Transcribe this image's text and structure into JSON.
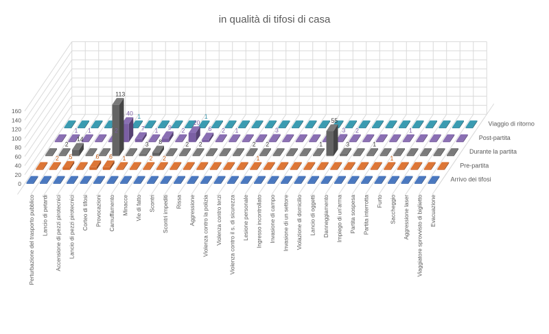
{
  "chart_data": {
    "type": "bar",
    "projection": "3d-column",
    "title": "in qualità di tifosi di casa",
    "title_color": "#595959",
    "axis_text_color": "#595959",
    "grid_color": "#D9D9D9",
    "grid": true,
    "ylim": [
      0,
      160
    ],
    "yticks": [
      0,
      20,
      40,
      60,
      80,
      100,
      120,
      140,
      160
    ],
    "series_labels_position": "right-depth-axis",
    "categories": [
      "Perturbazione del trasporto pubblico",
      "Lancio di petardi",
      "Accensione di pezzi pirotecnici",
      "Lancio di pezzi pirotecnici",
      "Corteo di tifosi",
      "Provocazioni",
      "Camuffamento",
      "Minacce",
      "Vie di fatto",
      "Scontri",
      "Scontri impediti",
      "Rissa",
      "Aggressione",
      "Violenza contro la polizia",
      "Violenza contro terzi",
      "Violenza contro il s. di sicurezza",
      "Lesione personale",
      "Ingresso incontrollato",
      "Invasione di campo",
      "Invasione di un settore",
      "Violazione di domicilio",
      "Lancio di oggetti",
      "Danneggiamento",
      "Impiego di un'arma",
      "Partita sospesa",
      "Partita interrotta",
      "Furto",
      "Saccheggio",
      "Aggressione laser",
      "Viaggiatore sprovvisto di biglietto",
      "Evacuazione"
    ],
    "series": [
      {
        "name": "Arrivo dei tifosi",
        "color": "#3E6CB5",
        "color_top": "#4A78C0",
        "color_side": "#2B4C80",
        "label_color": "#3E6CB5",
        "values": [
          0,
          0,
          0,
          0,
          0,
          0,
          0,
          0,
          0,
          0,
          0,
          0,
          0,
          0,
          0,
          0,
          0,
          0,
          0,
          0,
          0,
          0,
          0,
          0,
          0,
          0,
          0,
          0,
          0,
          0,
          0
        ]
      },
      {
        "name": "Pre-partita",
        "color": "#D2682A",
        "color_top": "#DD7636",
        "color_side": "#94491D",
        "label_color": "#C55A11",
        "values": [
          0,
          2,
          5,
          0,
          6,
          6,
          1,
          0,
          2,
          2,
          0,
          0,
          0,
          0,
          0,
          0,
          1,
          0,
          0,
          0,
          0,
          0,
          0,
          0,
          0,
          0,
          1,
          0,
          0,
          0,
          0
        ]
      },
      {
        "name": "Durante la partita",
        "color": "#646464",
        "color_top": "#7A7A7A",
        "color_side": "#454545",
        "label_color": "#3F3F3F",
        "values": [
          0,
          2,
          14,
          0,
          0,
          113,
          0,
          3,
          8,
          0,
          2,
          2,
          0,
          0,
          0,
          2,
          2,
          0,
          0,
          0,
          1,
          55,
          3,
          0,
          1,
          0,
          0,
          0,
          0,
          0,
          0
        ]
      },
      {
        "name": "Post-partita",
        "color": "#7B5FA4",
        "color_top": "#8A6FB3",
        "color_side": "#564273",
        "label_color": "#7B5FA4",
        "values": [
          0,
          1,
          1,
          0,
          2,
          40,
          7,
          1,
          9,
          2,
          20,
          6,
          2,
          1,
          0,
          0,
          3,
          0,
          0,
          0,
          0,
          3,
          2,
          0,
          0,
          0,
          1,
          0,
          0,
          0,
          0
        ]
      },
      {
        "name": "Viaggio di ritorno",
        "color": "#2F8DA3",
        "color_top": "#3A9BB1",
        "color_side": "#206272",
        "label_color": "#2F8DA3",
        "values": [
          0,
          0,
          0,
          0,
          0,
          1,
          0,
          0,
          0,
          0,
          1,
          0,
          0,
          0,
          0,
          0,
          0,
          0,
          0,
          0,
          0,
          0,
          0,
          0,
          0,
          0,
          0,
          0,
          0,
          0,
          0
        ]
      }
    ]
  }
}
